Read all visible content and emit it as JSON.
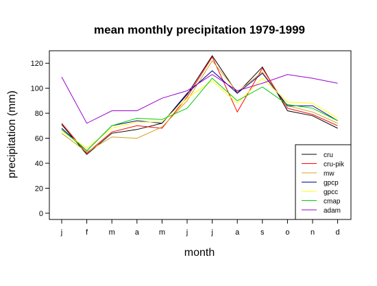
{
  "chart_data": {
    "type": "line",
    "title": "mean monthly precipitation 1979-1999",
    "xlabel": "month",
    "ylabel": "precipitation (mm)",
    "categories": [
      "j",
      "f",
      "m",
      "a",
      "m",
      "j",
      "j",
      "a",
      "s",
      "o",
      "n",
      "d"
    ],
    "yticks": [
      0,
      20,
      40,
      60,
      80,
      100,
      120
    ],
    "ylim": [
      -5,
      130
    ],
    "grid": false,
    "legend_position": "bottom-right",
    "series": [
      {
        "name": "cru",
        "color": "#000000",
        "values": [
          71,
          47,
          64,
          67,
          72,
          95,
          126,
          96,
          117,
          82,
          78,
          68
        ]
      },
      {
        "name": "cru-pik",
        "color": "#ff0000",
        "values": [
          72,
          48,
          65,
          70,
          68,
          93,
          125,
          81,
          116,
          84,
          79,
          70
        ]
      },
      {
        "name": "mw",
        "color": "#d4a017",
        "values": [
          64,
          49,
          61,
          60,
          69,
          90,
          122,
          97,
          113,
          86,
          81,
          72
        ]
      },
      {
        "name": "gpcp",
        "color": "#00008b",
        "values": [
          68,
          50,
          70,
          74,
          72,
          96,
          114,
          96,
          112,
          86,
          86,
          74
        ]
      },
      {
        "name": "gpcc",
        "color": "#ffff00",
        "values": [
          66,
          52,
          68,
          73,
          73,
          92,
          106,
          88,
          108,
          89,
          88,
          76
        ]
      },
      {
        "name": "cmap",
        "color": "#00cc00",
        "values": [
          67,
          50,
          70,
          76,
          75,
          84,
          108,
          90,
          101,
          87,
          84,
          74
        ]
      },
      {
        "name": "adam",
        "color": "#9900cc",
        "values": [
          109,
          72,
          82,
          82,
          92,
          98,
          111,
          98,
          104,
          111,
          108,
          104
        ]
      }
    ]
  }
}
